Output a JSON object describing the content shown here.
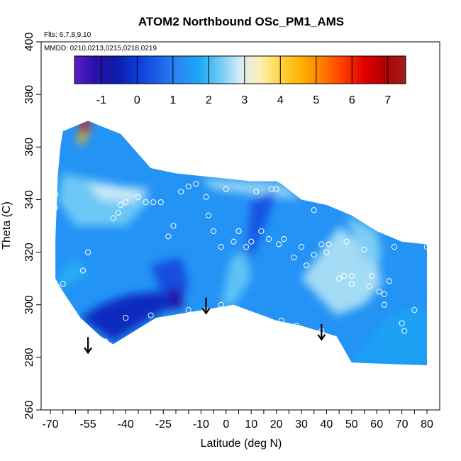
{
  "chart_data": {
    "type": "heatmap",
    "title": "ATOM2 Northbound OSc_PM1_AMS",
    "annotations": [
      "Flts: 6,7,8,9,10",
      "MMDD: 0210,0213,0215,0218,0219"
    ],
    "xlabel": "Latitude (deg N)",
    "ylabel": "Theta (C)",
    "xlim": [
      -70,
      80
    ],
    "ylim": [
      260,
      400
    ],
    "x_ticks": [
      -70,
      -55,
      -40,
      -25,
      -10,
      0,
      10,
      20,
      30,
      40,
      50,
      60,
      70,
      80
    ],
    "x_tick_labels": [
      "-70",
      "-55",
      "-40",
      "-25",
      "-10",
      "0",
      "10",
      "20",
      "30",
      "40",
      "50",
      "60",
      "70",
      "80"
    ],
    "y_ticks": [
      260,
      280,
      300,
      320,
      340,
      360,
      380,
      400
    ],
    "y_tick_labels": [
      "260",
      "280",
      "300",
      "320",
      "340",
      "360",
      "380",
      "400"
    ],
    "colorbar": {
      "range": [
        -1.75,
        7.5
      ],
      "ticks": [
        -1,
        0,
        1,
        2,
        3,
        4,
        5,
        6,
        7
      ],
      "tick_labels": [
        "-1",
        "0",
        "1",
        "2",
        "3",
        "4",
        "5",
        "6",
        "7"
      ],
      "colors": [
        "#5b1cc8",
        "#2a12a8",
        "#0d1aa8",
        "#0a3ad6",
        "#1a5fe6",
        "#2b86f5",
        "#1aa8f5",
        "#6cc8f5",
        "#d6ecf5",
        "#fff0b0",
        "#ffd23a",
        "#ffb000",
        "#ff7a00",
        "#ff3a00",
        "#e00000",
        "#b00000",
        "#a02020"
      ]
    },
    "arrows_at": [
      {
        "lat": -55,
        "theta": 285
      },
      {
        "lat": -8,
        "theta": 300
      },
      {
        "lat": 38,
        "theta": 290
      }
    ],
    "field_boundary": [
      [
        -65,
        366
      ],
      [
        -55,
        370
      ],
      [
        -50,
        368
      ],
      [
        -42,
        365
      ],
      [
        -30,
        352
      ],
      [
        -20,
        350
      ],
      [
        -10,
        349
      ],
      [
        0,
        348
      ],
      [
        10,
        347
      ],
      [
        20,
        347
      ],
      [
        22,
        346
      ],
      [
        30,
        340
      ],
      [
        40,
        338
      ],
      [
        50,
        334
      ],
      [
        60,
        328
      ],
      [
        70,
        324
      ],
      [
        80,
        323
      ],
      [
        80,
        277
      ],
      [
        50,
        278
      ],
      [
        44,
        288
      ],
      [
        30,
        292
      ],
      [
        20,
        294
      ],
      [
        3,
        300
      ],
      [
        -28,
        295
      ],
      [
        -45,
        285
      ],
      [
        -50,
        288
      ],
      [
        -58,
        295
      ],
      [
        -65,
        305
      ],
      [
        -68,
        310
      ],
      [
        -68,
        325
      ],
      [
        -67,
        350
      ],
      [
        -66,
        360
      ]
    ],
    "regions": [
      {
        "name": "south-mid-light",
        "value": 2.3,
        "points": [
          [
            -65,
            350
          ],
          [
            -45,
            346
          ],
          [
            -30,
            340
          ],
          [
            -40,
            330
          ],
          [
            -60,
            330
          ],
          [
            -67,
            340
          ]
        ]
      },
      {
        "name": "south-tongue-light",
        "value": 2.8,
        "points": [
          [
            -55,
            346
          ],
          [
            -30,
            344
          ],
          [
            -38,
            339
          ],
          [
            -50,
            340
          ]
        ]
      },
      {
        "name": "upper-band-light",
        "value": 2.5,
        "points": [
          [
            -10,
            348
          ],
          [
            22,
            346
          ],
          [
            30,
            340
          ],
          [
            10,
            342
          ],
          [
            -5,
            344
          ]
        ]
      },
      {
        "name": "lower-left-dark",
        "value": -0.3,
        "points": [
          [
            -58,
            295
          ],
          [
            -45,
            286
          ],
          [
            -28,
            296
          ],
          [
            -20,
            300
          ],
          [
            -25,
            305
          ],
          [
            -38,
            304
          ],
          [
            -50,
            300
          ]
        ]
      },
      {
        "name": "upper-left-dark",
        "value": 0.3,
        "points": [
          [
            -30,
            315
          ],
          [
            -18,
            318
          ],
          [
            -15,
            308
          ],
          [
            -18,
            300
          ],
          [
            -25,
            303
          ],
          [
            -28,
            310
          ]
        ]
      },
      {
        "name": "low-min-core",
        "value": -1.0,
        "points": [
          [
            -24,
            306
          ],
          [
            -18,
            306
          ],
          [
            -17,
            299
          ],
          [
            -22,
            298
          ]
        ]
      },
      {
        "name": "center-dark-wedge",
        "value": 0.4,
        "points": [
          [
            10,
            340
          ],
          [
            20,
            344
          ],
          [
            17,
            334
          ],
          [
            12,
            322
          ],
          [
            6,
            310
          ],
          [
            4,
            300
          ],
          [
            8,
            318
          ]
        ]
      },
      {
        "name": "center-light-streak",
        "value": 2.2,
        "points": [
          [
            -2,
            300
          ],
          [
            3,
            300
          ],
          [
            10,
            310
          ],
          [
            8,
            320
          ],
          [
            2,
            318
          ]
        ]
      },
      {
        "name": "east-light-wedge",
        "value": 2.6,
        "points": [
          [
            30,
            310
          ],
          [
            44,
            296
          ],
          [
            55,
            300
          ],
          [
            62,
            308
          ],
          [
            60,
            318
          ],
          [
            50,
            326
          ],
          [
            45,
            330
          ],
          [
            38,
            320
          ]
        ]
      },
      {
        "name": "east-light-upper",
        "value": 2.4,
        "points": [
          [
            48,
            334
          ],
          [
            60,
            328
          ],
          [
            62,
            318
          ],
          [
            55,
            316
          ]
        ]
      },
      {
        "name": "east-lower",
        "value": 1.6,
        "points": [
          [
            50,
            278
          ],
          [
            80,
            277
          ],
          [
            80,
            300
          ],
          [
            65,
            296
          ]
        ]
      },
      {
        "name": "west-edge-mid",
        "value": 1.8,
        "points": [
          [
            -68,
            310
          ],
          [
            -60,
            318
          ],
          [
            -55,
            312
          ],
          [
            -66,
            306
          ]
        ]
      },
      {
        "name": "far-west-hot",
        "value": 6.5,
        "points": [
          [
            -58,
            370
          ],
          [
            -54,
            370
          ],
          [
            -55,
            366
          ],
          [
            -58,
            364
          ]
        ]
      },
      {
        "name": "far-west-warm",
        "value": 4.5,
        "points": [
          [
            -59,
            364
          ],
          [
            -55,
            366
          ],
          [
            -56,
            362
          ],
          [
            -59,
            361
          ]
        ]
      }
    ],
    "points": [
      [
        -68,
        342
      ],
      [
        -68,
        337
      ],
      [
        -65,
        308
      ],
      [
        -57,
        313
      ],
      [
        -55,
        320
      ],
      [
        -45,
        333
      ],
      [
        -43,
        335
      ],
      [
        -42,
        338
      ],
      [
        -40,
        339
      ],
      [
        -35,
        341
      ],
      [
        -32,
        339
      ],
      [
        -29,
        339
      ],
      [
        -26,
        339
      ],
      [
        -23,
        326
      ],
      [
        -21,
        330
      ],
      [
        -18,
        343
      ],
      [
        -15,
        345
      ],
      [
        -12,
        346
      ],
      [
        -8,
        341
      ],
      [
        -7,
        334
      ],
      [
        -5,
        328
      ],
      [
        -2,
        322
      ],
      [
        0,
        344
      ],
      [
        3,
        324
      ],
      [
        5,
        328
      ],
      [
        8,
        322
      ],
      [
        10,
        324
      ],
      [
        12,
        343
      ],
      [
        14,
        328
      ],
      [
        17,
        325
      ],
      [
        18,
        344
      ],
      [
        20,
        344
      ],
      [
        21,
        323
      ],
      [
        23,
        325
      ],
      [
        27,
        318
      ],
      [
        30,
        322
      ],
      [
        32,
        315
      ],
      [
        35,
        336
      ],
      [
        35,
        319
      ],
      [
        38,
        323
      ],
      [
        40,
        320
      ],
      [
        41,
        323
      ],
      [
        45,
        310
      ],
      [
        47,
        311
      ],
      [
        48,
        324
      ],
      [
        50,
        308
      ],
      [
        55,
        321
      ],
      [
        57,
        307
      ],
      [
        58,
        311
      ],
      [
        61,
        305
      ],
      [
        63,
        304
      ],
      [
        63,
        300
      ],
      [
        65,
        309
      ],
      [
        67,
        322
      ],
      [
        70,
        293
      ],
      [
        71,
        290
      ],
      [
        75,
        298
      ],
      [
        80,
        322
      ],
      [
        -48,
        286
      ],
      [
        -40,
        295
      ],
      [
        -30,
        296
      ],
      [
        -15,
        298
      ],
      [
        -8,
        298
      ],
      [
        -2,
        300
      ],
      [
        5,
        297
      ],
      [
        12,
        294
      ],
      [
        22,
        294
      ],
      [
        28,
        292
      ],
      [
        38,
        290
      ],
      [
        50,
        311
      ]
    ]
  }
}
